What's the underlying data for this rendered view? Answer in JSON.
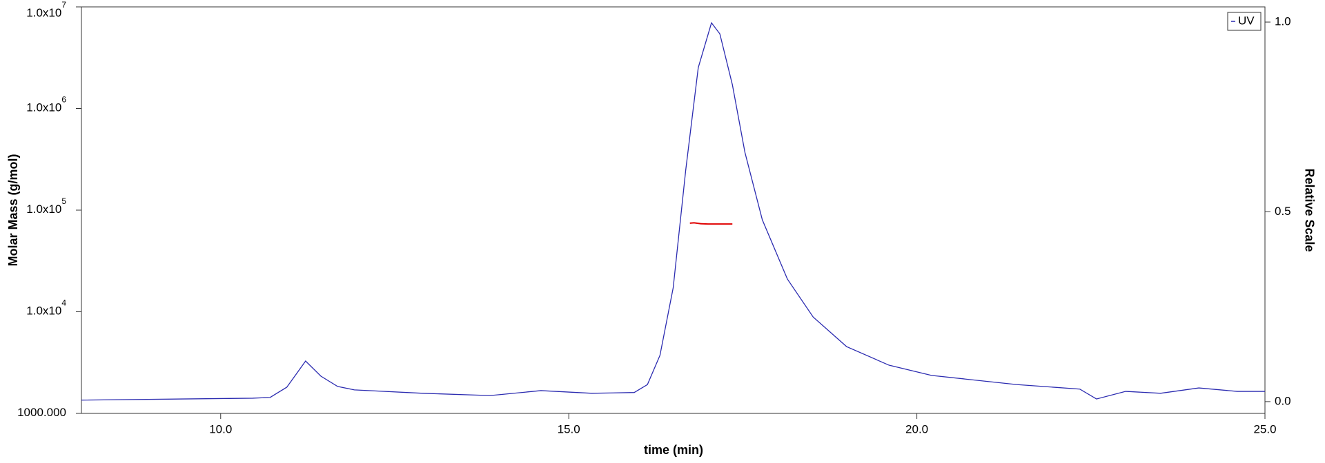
{
  "chart_data": {
    "type": "line",
    "xlabel": "time (min)",
    "ylabel": "Molar Mass (g/mol)",
    "y2label": "Relative Scale",
    "xlim": [
      8,
      25
    ],
    "xticks": [
      {
        "value": 10,
        "label": "10.0"
      },
      {
        "value": 15,
        "label": "15.0"
      },
      {
        "value": 20,
        "label": "20.0"
      },
      {
        "value": 25,
        "label": "25.0"
      }
    ],
    "ylim": [
      1000,
      10000000
    ],
    "ylog": true,
    "yticks": [
      {
        "value": 1000,
        "label": "1000.000"
      },
      {
        "value": 10000,
        "label": "1.0x10",
        "exponent": "4"
      },
      {
        "value": 100000,
        "label": "1.0x10",
        "exponent": "5"
      },
      {
        "value": 1000000,
        "label": "1.0x10",
        "exponent": "6"
      },
      {
        "value": 10000000,
        "label": "1.0x10",
        "exponent": "7"
      }
    ],
    "y2lim": [
      -0.031,
      1.04
    ],
    "y2ticks": [
      {
        "value": 0,
        "label": "0.0"
      },
      {
        "value": 0.5,
        "label": "0.5"
      },
      {
        "value": 1,
        "label": "1.0"
      }
    ],
    "legend": "top-right",
    "series": [
      {
        "name": "UV",
        "color": "#2b2bb0",
        "axis": "y2",
        "x": [
          8.0,
          10.46,
          10.71,
          10.95,
          11.22,
          11.44,
          11.68,
          11.92,
          12.9,
          13.87,
          14.6,
          15.33,
          15.94,
          16.13,
          16.31,
          16.5,
          16.68,
          16.86,
          17.05,
          17.17,
          17.35,
          17.53,
          17.78,
          18.14,
          18.51,
          18.99,
          19.6,
          20.21,
          21.43,
          22.34,
          22.58,
          23.0,
          23.5,
          24.05,
          24.6,
          25.0
        ],
        "values": [
          0.004,
          0.009,
          0.011,
          0.038,
          0.107,
          0.067,
          0.04,
          0.031,
          0.022,
          0.016,
          0.029,
          0.022,
          0.024,
          0.045,
          0.122,
          0.3,
          0.61,
          0.88,
          0.998,
          0.969,
          0.835,
          0.657,
          0.479,
          0.323,
          0.223,
          0.145,
          0.096,
          0.069,
          0.045,
          0.033,
          0.007,
          0.027,
          0.022,
          0.036,
          0.027,
          0.027
        ]
      },
      {
        "color": "#e00000",
        "axis": "y",
        "x": [
          16.74,
          16.8,
          16.9,
          17.0,
          17.1,
          17.2,
          17.35
        ],
        "values": [
          74500,
          75000,
          73500,
          73000,
          73000,
          73000,
          73000
        ]
      }
    ]
  }
}
